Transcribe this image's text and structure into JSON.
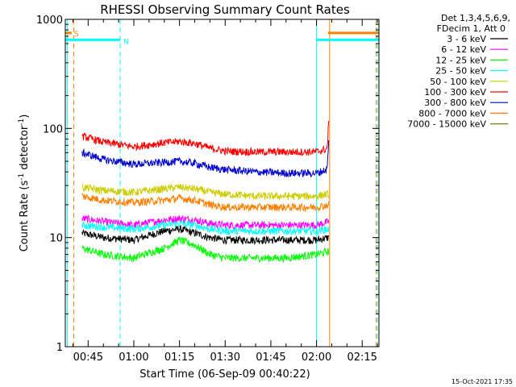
{
  "chart_data": {
    "type": "line",
    "title": "RHESSI Observing Summary Count Rates",
    "xlabel": "Start Time (06-Sep-09 00:40:22)",
    "ylabel_main": "Count Rate (s",
    "ylabel_sup1": "-1",
    "ylabel_mid": " detector",
    "ylabel_sup2": "-1",
    "ylabel_end": ")",
    "yscale": "log",
    "ylim": [
      1,
      1000
    ],
    "xlim_minutes": [
      37.5,
      140.5
    ],
    "x_ticks": [
      {
        "min": 45,
        "label": "00:45"
      },
      {
        "min": 60,
        "label": "01:00"
      },
      {
        "min": 75,
        "label": "01:15"
      },
      {
        "min": 90,
        "label": "01:30"
      },
      {
        "min": 105,
        "label": "01:45"
      },
      {
        "min": 120,
        "label": "02:00"
      },
      {
        "min": 135,
        "label": "02:15"
      }
    ],
    "y_ticks": [
      {
        "value": 1,
        "label": "1"
      },
      {
        "value": 10,
        "label": "10"
      },
      {
        "value": 100,
        "label": "100"
      },
      {
        "value": 1000,
        "label": "1000"
      }
    ],
    "legend_header": [
      "Det 1,3,4,5,6,9,",
      "FDecim 1, Att 0"
    ],
    "legend_placement": "right",
    "series": [
      {
        "name": "3 - 6 keV",
        "color": "#000000",
        "x": [
          43,
          50,
          60,
          70,
          75,
          80,
          85,
          90,
          100,
          110,
          120,
          124
        ],
        "y": [
          11,
          10,
          9.5,
          11.5,
          12,
          11,
          10,
          9.5,
          9.5,
          9.5,
          9.5,
          10
        ]
      },
      {
        "name": "6 - 12 keV",
        "color": "#ff00ff",
        "x": [
          43,
          50,
          60,
          70,
          75,
          80,
          85,
          90,
          100,
          110,
          120,
          124
        ],
        "y": [
          15,
          14,
          13,
          14.5,
          15,
          14.5,
          13.5,
          13,
          13,
          13,
          13,
          14
        ]
      },
      {
        "name": "12 - 25 keV",
        "color": "#00ff00",
        "x": [
          43,
          50,
          60,
          70,
          75,
          80,
          85,
          90,
          100,
          110,
          120,
          124
        ],
        "y": [
          8,
          7,
          6.5,
          8,
          9.5,
          8.5,
          7,
          6.5,
          6.5,
          6.5,
          7,
          7.5
        ]
      },
      {
        "name": "25 - 50 keV",
        "color": "#00ffff",
        "x": [
          43,
          50,
          60,
          70,
          75,
          80,
          85,
          90,
          100,
          110,
          120,
          124
        ],
        "y": [
          13,
          12.5,
          12,
          13,
          13.5,
          13,
          12,
          11.5,
          11.5,
          11.5,
          11.5,
          12
        ]
      },
      {
        "name": "50 - 100 keV",
        "color": "#cccc00",
        "x": [
          43,
          50,
          60,
          70,
          75,
          80,
          85,
          90,
          100,
          110,
          120,
          124
        ],
        "y": [
          29,
          27,
          26,
          28,
          29,
          28,
          26,
          25,
          24,
          24,
          24,
          25
        ]
      },
      {
        "name": "100 - 300 keV",
        "color": "#ff0000",
        "x": [
          43,
          50,
          60,
          70,
          75,
          80,
          85,
          90,
          100,
          110,
          120,
          123.5,
          124
        ],
        "y": [
          85,
          75,
          68,
          74,
          76,
          73,
          66,
          62,
          61,
          61,
          61,
          65,
          110
        ]
      },
      {
        "name": "300 - 800 keV",
        "color": "#0000cc",
        "x": [
          43,
          50,
          60,
          70,
          75,
          80,
          85,
          90,
          100,
          110,
          120,
          123.5,
          124
        ],
        "y": [
          60,
          52,
          47,
          49,
          50,
          48,
          44,
          42,
          40,
          39,
          39,
          42,
          75
        ]
      },
      {
        "name": "800 - 7000 keV",
        "color": "#ff8000",
        "x": [
          43,
          50,
          60,
          70,
          75,
          80,
          85,
          90,
          100,
          110,
          120,
          124
        ],
        "y": [
          24,
          22,
          21,
          22,
          23,
          22,
          20,
          19,
          19,
          19,
          19,
          20
        ]
      },
      {
        "name": "7000 - 15000 keV",
        "color": "#808000",
        "x": [],
        "y": []
      }
    ],
    "flags": [
      {
        "label": "S",
        "color": "#ff8000",
        "level": 750,
        "from_min": 37.5,
        "to_min": 39.6
      },
      {
        "label": "S",
        "color": "#ff8000",
        "level": 750,
        "from_min": 123.8,
        "to_min": 140.5
      },
      {
        "label": "N",
        "color": "#00ffff",
        "level": 650,
        "from_min": 37.5,
        "to_min": 55.5
      },
      {
        "label": "N",
        "color": "#00ffff",
        "level": 650,
        "from_min": 120,
        "to_min": 140.5
      }
    ],
    "markers": [
      {
        "color": "#00ffff",
        "style": "solid",
        "at_min": 38.2
      },
      {
        "color": "#ff8000",
        "style": "dashed",
        "at_min": 40.3
      },
      {
        "color": "#00ffff",
        "style": "dashed",
        "at_min": 55.5
      },
      {
        "color": "#00ffff",
        "style": "solid",
        "at_min": 120
      },
      {
        "color": "#ff8000",
        "style": "solid",
        "at_min": 124.3
      },
      {
        "color": "#ff8000",
        "style": "dashed",
        "at_min": 139.6
      },
      {
        "color": "#00ffff",
        "style": "dashed",
        "at_min": 140
      }
    ]
  },
  "timestamp": "15-Oct-2021 17:35"
}
